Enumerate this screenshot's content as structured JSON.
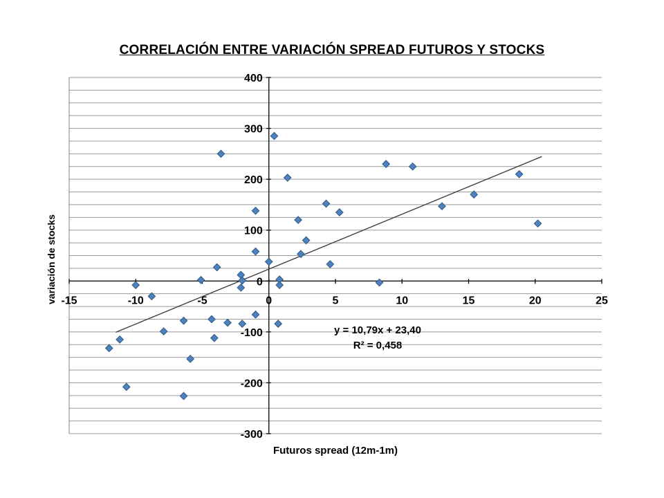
{
  "page": {
    "background": "#ffffff"
  },
  "chart_data": {
    "type": "scatter",
    "title": "CORRELACIÓN ENTRE VARIACIÓN SPREAD FUTUROS Y STOCKS",
    "xlabel": "Futuros spread (12m-1m)",
    "ylabel": "variación de stocks",
    "xlim": [
      -15,
      25
    ],
    "ylim": [
      -300,
      400
    ],
    "x_ticks": [
      -15,
      -10,
      -5,
      0,
      5,
      10,
      15,
      20,
      25
    ],
    "y_ticks": [
      400,
      300,
      200,
      100,
      0,
      -100,
      -200,
      -300
    ],
    "grid": "horizontal-only",
    "grid_step": 25,
    "legend": "none",
    "marker": {
      "shape": "diamond",
      "fill": "#4f81bd",
      "stroke": "#2e5a88"
    },
    "colors": {
      "gridline": "#9a9a9a",
      "border": "#808080",
      "axis": "#000000",
      "trendline": "#3f3f3f"
    },
    "points": [
      [
        0.4,
        285
      ],
      [
        -3.6,
        250
      ],
      [
        1.4,
        203
      ],
      [
        8.8,
        230
      ],
      [
        10.8,
        225
      ],
      [
        18.8,
        210
      ],
      [
        15.4,
        170
      ],
      [
        13.0,
        147
      ],
      [
        4.3,
        152
      ],
      [
        5.3,
        135
      ],
      [
        -1.0,
        138
      ],
      [
        20.2,
        113
      ],
      [
        2.2,
        120
      ],
      [
        2.8,
        80
      ],
      [
        -1.0,
        58
      ],
      [
        2.4,
        53
      ],
      [
        0.0,
        38
      ],
      [
        4.6,
        33
      ],
      [
        -3.9,
        27
      ],
      [
        -2.1,
        12
      ],
      [
        -5.1,
        2
      ],
      [
        -2.0,
        1
      ],
      [
        0.8,
        3
      ],
      [
        0.8,
        -8
      ],
      [
        -2.1,
        -13
      ],
      [
        8.3,
        -3
      ],
      [
        -10.0,
        -8
      ],
      [
        -8.8,
        -30
      ],
      [
        -1.0,
        -66
      ],
      [
        -6.4,
        -78
      ],
      [
        -4.3,
        -75
      ],
      [
        -3.1,
        -82
      ],
      [
        -2.0,
        -84
      ],
      [
        0.7,
        -84
      ],
      [
        -7.9,
        -99
      ],
      [
        -4.1,
        -112
      ],
      [
        -11.2,
        -115
      ],
      [
        -12.0,
        -132
      ],
      [
        -5.9,
        -153
      ],
      [
        -10.7,
        -208
      ],
      [
        -6.4,
        -226
      ]
    ],
    "trendline": {
      "slope": 10.79,
      "intercept": 23.4,
      "x_start": -11.5,
      "x_end": 20.5,
      "equation_label": "y = 10,79x + 23,40",
      "r2_label": "R² = 0,458"
    }
  }
}
